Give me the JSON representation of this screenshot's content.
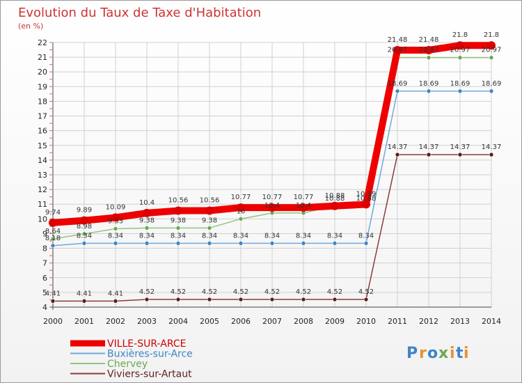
{
  "chart_data": {
    "type": "line",
    "title": "Evolution du Taux de Taxe d'Habitation",
    "subtitle": "(en %)",
    "x": [
      "2000",
      "2001",
      "2002",
      "2003",
      "2004",
      "2005",
      "2006",
      "2007",
      "2008",
      "2009",
      "2010",
      "2011",
      "2012",
      "2013",
      "2014"
    ],
    "yticks": [
      "4",
      "5",
      "6",
      "7",
      "8",
      "9",
      "10",
      "11",
      "12",
      "13",
      "14",
      "15",
      "16",
      "17",
      "18",
      "19",
      "20",
      "21",
      "22"
    ],
    "ylim": [
      4,
      22
    ],
    "grid": true,
    "legend_placement": "bottom-left",
    "series": [
      {
        "name": "VILLE-SUR-ARCE",
        "color": "#ee0000",
        "marker": "#dd0000",
        "values": [
          9.74,
          9.89,
          10.09,
          10.4,
          10.56,
          10.56,
          10.77,
          10.77,
          10.77,
          10.88,
          10.99,
          21.48,
          21.48,
          21.8,
          21.8
        ],
        "labels": [
          "9.74",
          "9.89",
          "10.09",
          "10.4",
          "10.56",
          "10.56",
          "10.77",
          "10.77",
          "10.77",
          "10.88",
          "10.99",
          "21.48",
          "21.48",
          "21.8",
          "21.8"
        ]
      },
      {
        "name": "Buxières-sur-Arce",
        "color": "#6fa8dc",
        "marker": "#3d85c6",
        "values": [
          8.18,
          8.34,
          8.34,
          8.34,
          8.34,
          8.34,
          8.34,
          8.34,
          8.34,
          8.34,
          8.34,
          18.69,
          18.69,
          18.69,
          18.69
        ],
        "labels": [
          "8.18",
          "8.34",
          "8.34",
          "8.34",
          "8.34",
          "8.34",
          "8.34",
          "8.34",
          "8.34",
          "8.34",
          "8.34",
          "18.69",
          "18.69",
          "18.69",
          "18.69"
        ]
      },
      {
        "name": "Chervey",
        "color": "#93c47d",
        "marker": "#6aa84f",
        "values": [
          8.64,
          8.98,
          9.33,
          9.38,
          9.38,
          9.38,
          10.0,
          10.4,
          10.4,
          10.88,
          10.88,
          20.97,
          20.97,
          20.97,
          20.97
        ],
        "labels": [
          "8.64",
          "8.98",
          "9.33",
          "9.38",
          "9.38",
          "9.38",
          "10",
          "10.4",
          "10.4",
          "10.88",
          "10.88",
          "20.97",
          "20.97",
          "20.97",
          "20.97"
        ]
      },
      {
        "name": "Viviers-sur-Artaut",
        "color": "#8b3a3a",
        "marker": "#5c1e1e",
        "values": [
          4.41,
          4.41,
          4.41,
          4.52,
          4.52,
          4.52,
          4.52,
          4.52,
          4.52,
          4.52,
          4.52,
          14.37,
          14.37,
          14.37,
          14.37
        ],
        "labels": [
          "4.41",
          "4.41",
          "4.41",
          "4.52",
          "4.52",
          "4.52",
          "4.52",
          "4.52",
          "4.52",
          "4.52",
          "4.52",
          "14.37",
          "14.37",
          "14.37",
          "14.37"
        ]
      }
    ]
  },
  "logo": {
    "letters": [
      "P",
      "r",
      "o",
      "x",
      "i",
      "t",
      "i"
    ],
    "colors": [
      "#3d85c6",
      "#e69138",
      "#3d85c6",
      "#6aa84f",
      "#e69138",
      "#3d85c6",
      "#e69138"
    ]
  }
}
